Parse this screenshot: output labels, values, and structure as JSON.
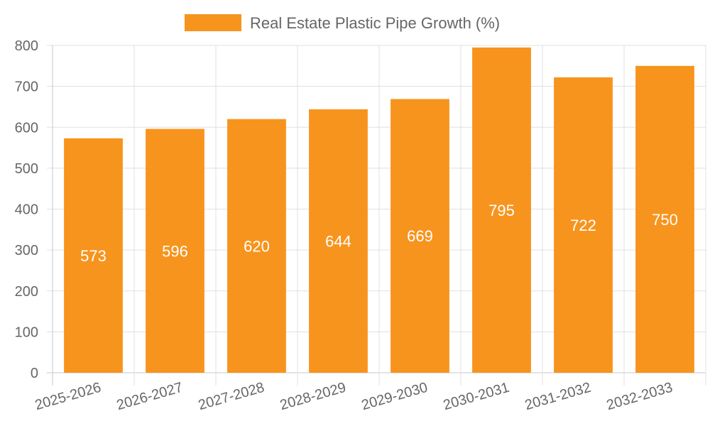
{
  "chart_data": {
    "type": "bar",
    "title": "",
    "xlabel": "",
    "ylabel": "",
    "categories": [
      "2025-2026",
      "2026-2027",
      "2027-2028",
      "2028-2029",
      "2029-2030",
      "2030-2031",
      "2031-2032",
      "2032-2033"
    ],
    "series": [
      {
        "name": "Real Estate Plastic Pipe Growth (%)",
        "values": [
          573,
          596,
          620,
          644,
          669,
          795,
          722,
          750
        ],
        "color": "#f7941e"
      }
    ],
    "ylim": [
      0,
      800
    ],
    "yticks": [
      0,
      100,
      200,
      300,
      400,
      500,
      600,
      700,
      800
    ],
    "grid": true,
    "legend_position": "top",
    "data_labels": true,
    "colors": {
      "bar": "#f7941e",
      "grid": "#e0e0e0",
      "axis": "#c8c8c8",
      "text": "#666666",
      "data_label": "#ffffff"
    }
  }
}
